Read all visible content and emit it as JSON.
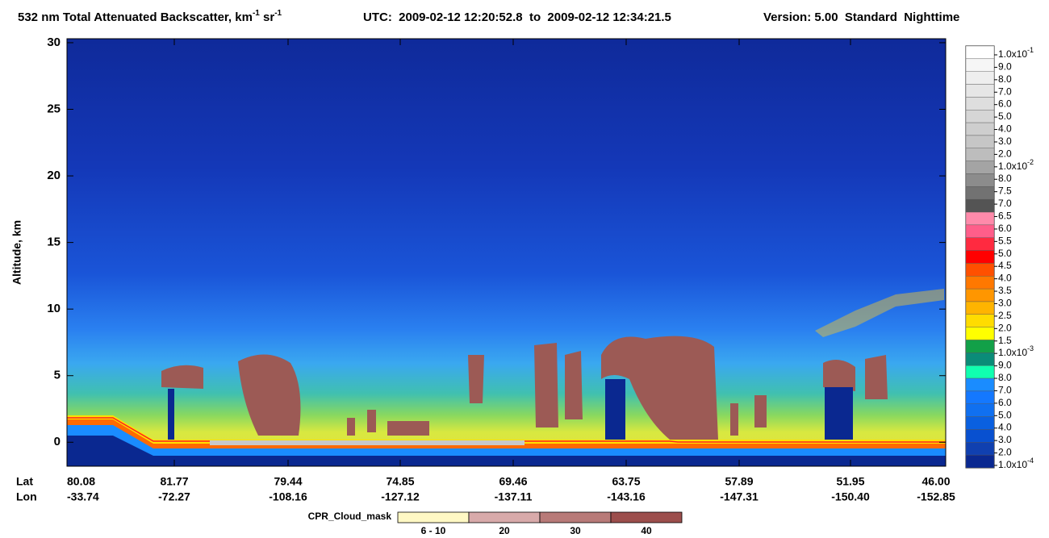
{
  "chart_data": {
    "type": "curtain",
    "title": [
      {
        "text": "532 nm Total Attenuated Backscatter, km"
      },
      {
        "text": "-1",
        "sup": true
      },
      {
        "text": " sr"
      },
      {
        "text": "-1",
        "sup": true
      }
    ],
    "utc": "UTC:  2009-02-12 12:20:52.8  to  2009-02-12 12:34:21.5",
    "version": "Version: 5.00  Standard  Nighttime",
    "ylabel": "Altitude, km",
    "ylim": [
      -1.8,
      30.3
    ],
    "yticks": [
      0,
      5,
      10,
      15,
      20,
      25,
      30
    ],
    "x_rows": [
      {
        "label": "Lat",
        "values": [
          "80.08",
          "81.77",
          "79.44",
          "74.85",
          "69.46",
          "63.75",
          "57.89",
          "51.95",
          "46.00"
        ]
      },
      {
        "label": "Lon",
        "values": [
          "-33.74",
          "-72.27",
          "-108.16",
          "-127.12",
          "-137.11",
          "-143.16",
          "-147.31",
          "-150.40",
          "-152.85"
        ]
      }
    ],
    "colorbar": {
      "labels": [
        {
          "text": "1.0x10",
          "sup": "-1"
        },
        {
          "text": "9.0"
        },
        {
          "text": "8.0"
        },
        {
          "text": "7.0"
        },
        {
          "text": "6.0"
        },
        {
          "text": "5.0"
        },
        {
          "text": "4.0"
        },
        {
          "text": "3.0"
        },
        {
          "text": "2.0"
        },
        {
          "text": "1.0x10",
          "sup": "-2"
        },
        {
          "text": "8.0"
        },
        {
          "text": "7.5"
        },
        {
          "text": "7.0"
        },
        {
          "text": "6.5"
        },
        {
          "text": "6.0"
        },
        {
          "text": "5.5"
        },
        {
          "text": "5.0"
        },
        {
          "text": "4.5"
        },
        {
          "text": "4.0"
        },
        {
          "text": "3.5"
        },
        {
          "text": "3.0"
        },
        {
          "text": "2.5"
        },
        {
          "text": "2.0"
        },
        {
          "text": "1.5"
        },
        {
          "text": "1.0x10",
          "sup": "-3"
        },
        {
          "text": "9.0"
        },
        {
          "text": "8.0"
        },
        {
          "text": "7.0"
        },
        {
          "text": "6.0"
        },
        {
          "text": "5.0"
        },
        {
          "text": "4.0"
        },
        {
          "text": "3.0"
        },
        {
          "text": "2.0"
        },
        {
          "text": "1.0x10",
          "sup": "-4"
        }
      ],
      "colors": [
        "#ffffff",
        "#f6f6f6",
        "#eeeeee",
        "#e6e6e6",
        "#dedede",
        "#d6d6d6",
        "#cecece",
        "#c6c6c6",
        "#bdbdbd",
        "#a4a4a4",
        "#8c8c8c",
        "#727272",
        "#545454",
        "#ff8aaa",
        "#ff5e8a",
        "#ff2a40",
        "#ff0000",
        "#ff5000",
        "#ff7800",
        "#ff9600",
        "#ffb400",
        "#ffdc00",
        "#ffff00",
        "#12a048",
        "#0a8c78",
        "#10ffb0",
        "#1a8cff",
        "#1478ff",
        "#1070f0",
        "#0a60e0",
        "#0850d0",
        "#1040b0",
        "#0a2890"
      ]
    },
    "cloud_mask": {
      "label": "CPR_Cloud_mask",
      "categories": [
        "6 - 10",
        "20",
        "30",
        "40"
      ],
      "colors": [
        "#fff8c4",
        "#d8aaaa",
        "#b87a78",
        "#9c4e4c"
      ]
    }
  }
}
